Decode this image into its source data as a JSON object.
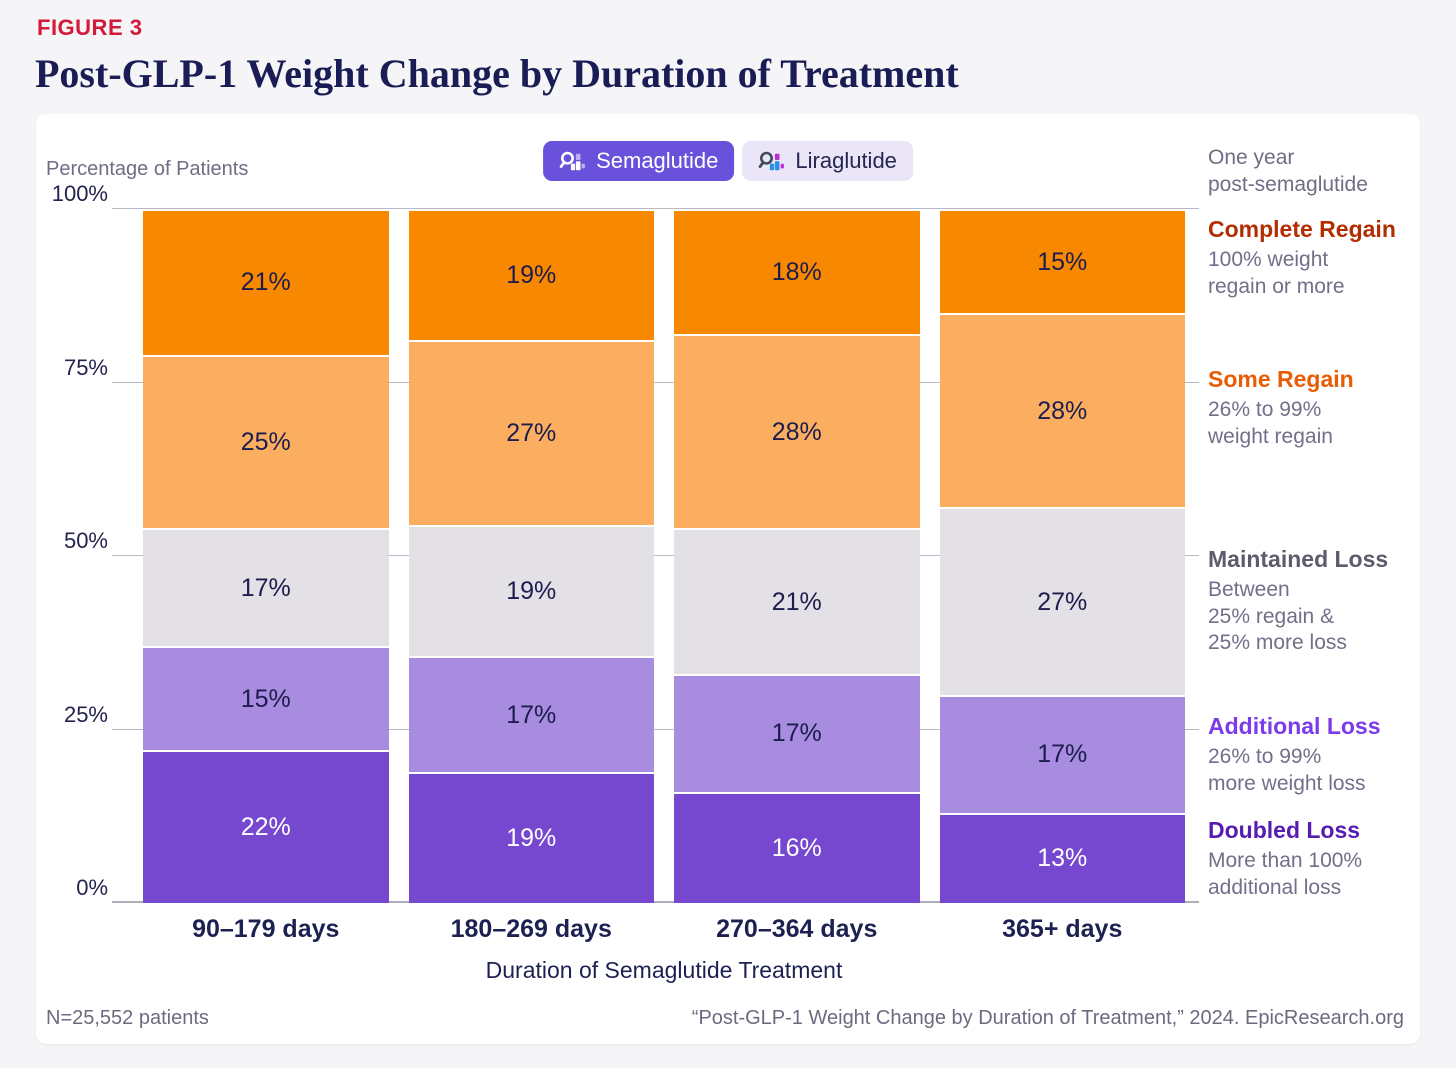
{
  "figure_label": "FIGURE 3",
  "title": "Post-GLP-1 Weight Change by Duration of Treatment",
  "controls": {
    "toggles": [
      {
        "label": "Semaglutide",
        "active": true
      },
      {
        "label": "Liraglutide",
        "active": false
      }
    ]
  },
  "chart_data": {
    "type": "bar",
    "subtype": "stacked-percent",
    "title": "Post-GLP-1 Weight Change by Duration of Treatment",
    "ylabel": "Percentage of Patients",
    "xlabel": "Duration of Semaglutide Treatment",
    "ylim": [
      0,
      100
    ],
    "grid": true,
    "y_ticks": [
      "0%",
      "25%",
      "50%",
      "75%",
      "100%"
    ],
    "categories": [
      "90–179 days",
      "180–269 days",
      "270–364 days",
      "365+ days"
    ],
    "series": [
      {
        "name": "Doubled Loss",
        "color": "#7648d0",
        "label_color": "#ffffff",
        "values": [
          22,
          19,
          16,
          13
        ]
      },
      {
        "name": "Additional Loss",
        "color": "#a78cdf",
        "label_color": "#1c1c4e",
        "values": [
          15,
          17,
          17,
          17
        ]
      },
      {
        "name": "Maintained Loss",
        "color": "#e3e0e6",
        "label_color": "#1c1c4e",
        "values": [
          17,
          19,
          21,
          27
        ]
      },
      {
        "name": "Some Regain",
        "color": "#fbae5f",
        "label_color": "#1c1c4e",
        "values": [
          25,
          27,
          28,
          28
        ]
      },
      {
        "name": "Complete Regain",
        "color": "#f78800",
        "label_color": "#1c1c4e",
        "values": [
          21,
          19,
          18,
          15
        ]
      }
    ],
    "legend_position": "right"
  },
  "legend": {
    "context_note": "One year\npost-semaglutide",
    "entries": [
      {
        "title": "Complete Regain",
        "color": "#b22d01",
        "desc": "100% weight\nregain or more"
      },
      {
        "title": "Some Regain",
        "color": "#e85d04",
        "desc": "26% to 99%\nweight regain"
      },
      {
        "title": "Maintained Loss",
        "color": "#5c5c6d",
        "desc": "Between\n25% regain &\n25% more loss"
      },
      {
        "title": "Additional Loss",
        "color": "#7c3bea",
        "desc": "26% to 99%\nmore weight loss"
      },
      {
        "title": "Doubled Loss",
        "color": "#561cb2",
        "desc": "More than 100%\nadditional loss"
      }
    ]
  },
  "footer": {
    "n_label": "N=25,552 patients",
    "citation": "“Post-GLP-1 Weight Change by Duration of Treatment,” 2024. EpicResearch.org"
  }
}
